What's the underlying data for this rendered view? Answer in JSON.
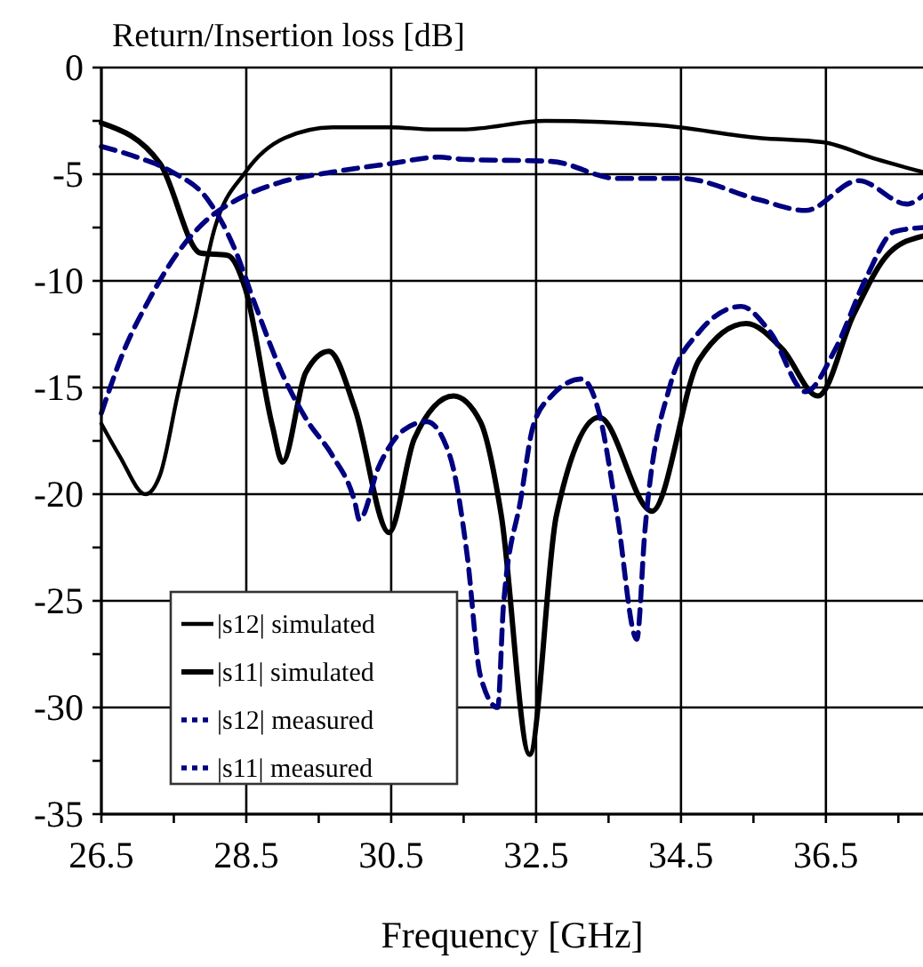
{
  "chart_data": {
    "type": "line",
    "ylabel": "Return/Insertion loss  [dB]",
    "xlabel": "Frequency [GHz]",
    "xlim": [
      26.5,
      37.84
    ],
    "ylim": [
      -35,
      0
    ],
    "xticks": [
      26.5,
      {
        "value": 27.5,
        "label": null
      },
      28.5,
      {
        "value": 29.5,
        "label": null
      },
      30.5,
      {
        "value": 31.5,
        "label": null
      },
      32.5,
      {
        "value": 33.5,
        "label": null
      },
      34.5,
      {
        "value": 35.5,
        "label": null
      },
      36.5,
      {
        "value": 37.5,
        "label": null
      }
    ],
    "yticks": [
      0,
      {
        "value": -2.5,
        "label": null
      },
      -5,
      {
        "value": -7.5,
        "label": null
      },
      -10,
      {
        "value": -12.5,
        "label": null
      },
      -15,
      {
        "value": -17.5,
        "label": null
      },
      -20,
      {
        "value": -22.5,
        "label": null
      },
      -25,
      {
        "value": -27.5,
        "label": null
      },
      -30,
      {
        "value": -32.5,
        "label": null
      },
      -35
    ],
    "grid": true,
    "legend": "bottom left",
    "marker": "none",
    "series": [
      {
        "name": "|s12| simulated",
        "color": "#000000",
        "line_style": "solid",
        "x": [
          26.5,
          26.75,
          27.11,
          27.31,
          27.55,
          27.8,
          28.05,
          28.49,
          29.03,
          29.69,
          30.5,
          31.06,
          31.48,
          32.63,
          34.18,
          35.58,
          36.46,
          37.2,
          37.84
        ],
        "values": [
          -16.7,
          -18.2,
          -20,
          -19.1,
          -15.4,
          -11.6,
          -7.7,
          -4.9,
          -3.3,
          -2.8,
          -2.8,
          -2.9,
          -2.9,
          -2.5,
          -2.7,
          -3.3,
          -3.5,
          -4.3,
          -4.9
        ]
      },
      {
        "name": "|s11| simulated",
        "color": "#000000",
        "line_style": "solid",
        "x": [
          26.5,
          27.31,
          27.87,
          28.24,
          28.49,
          28.86,
          29.0,
          29.32,
          29.64,
          30.0,
          30.47,
          30.82,
          31.36,
          31.73,
          32.02,
          32.41,
          32.78,
          33.37,
          34.1,
          34.75,
          35.4,
          35.9,
          36.39,
          36.88,
          37.37,
          37.84
        ],
        "values": [
          -2.6,
          -4.5,
          -8.7,
          -8.8,
          -10.4,
          -16.8,
          -18.5,
          -14.3,
          -13.3,
          -16,
          -21.8,
          -17.4,
          -15.4,
          -16.6,
          -21,
          -32.2,
          -21,
          -16.4,
          -20.8,
          -13.7,
          -12,
          -13.2,
          -15.4,
          -11.6,
          -8.7,
          -7.9
        ]
      },
      {
        "name": "|s12| measured",
        "color": "#000080",
        "line_style": "dashed",
        "x": [
          26.5,
          26.82,
          27.14,
          27.55,
          27.97,
          28.37,
          28.95,
          29.69,
          30.5,
          31.16,
          31.48,
          32.71,
          33.62,
          34.5,
          35.58,
          36.22,
          36.95,
          37.62,
          37.84
        ],
        "values": [
          -16.2,
          -13.2,
          -11,
          -8.7,
          -7.1,
          -6.2,
          -5.4,
          -4.9,
          -4.5,
          -4.2,
          -4.3,
          -4.4,
          -5.2,
          -5.2,
          -6.2,
          -6.7,
          -5.3,
          -6.4,
          -6
        ]
      },
      {
        "name": "|s11| measured",
        "color": "#000080",
        "line_style": "dashed",
        "x": [
          26.5,
          26.99,
          27.48,
          27.97,
          28.34,
          28.61,
          29.03,
          29.35,
          29.69,
          30.0,
          30.06,
          30.33,
          30.67,
          30.99,
          31.31,
          31.55,
          31.73,
          31.97,
          32.05,
          32.29,
          32.46,
          32.71,
          33.13,
          33.37,
          33.62,
          33.89,
          34.0,
          34.35,
          34.75,
          35.33,
          35.73,
          36.22,
          36.63,
          37.05,
          37.44,
          37.84
        ],
        "values": [
          -3.7,
          -4.2,
          -4.9,
          -6.2,
          -8.5,
          -11,
          -14.6,
          -16.6,
          -18.2,
          -20.4,
          -21.2,
          -18.7,
          -17,
          -16.6,
          -18.2,
          -22.9,
          -28.5,
          -30,
          -25.2,
          -20.2,
          -16.8,
          -15.4,
          -14.6,
          -16.2,
          -21,
          -26.8,
          -21.8,
          -14.9,
          -12.4,
          -11.2,
          -12.4,
          -15.2,
          -13.2,
          -9.9,
          -7.7,
          -7.5
        ]
      }
    ]
  }
}
